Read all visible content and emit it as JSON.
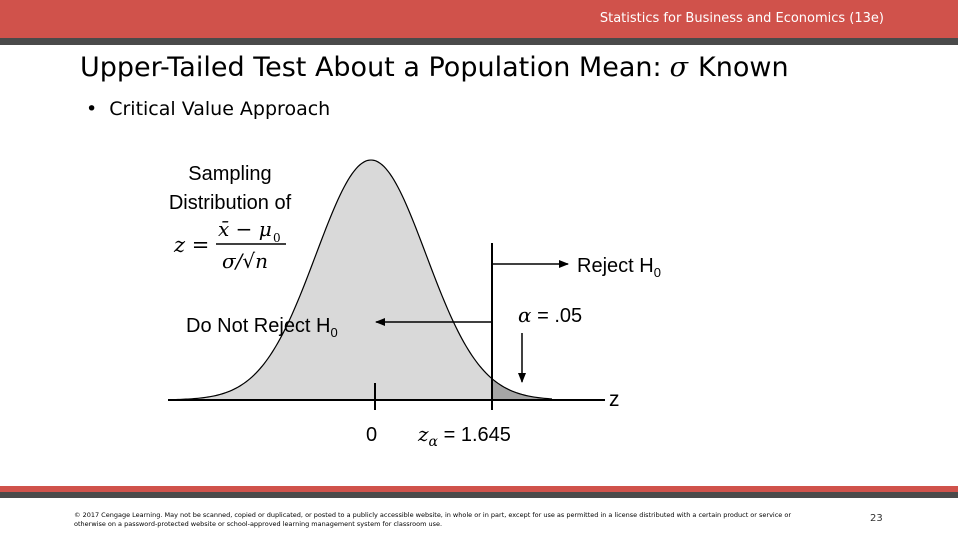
{
  "header": {
    "course": "Statistics for Business and Economics (13e)"
  },
  "slide": {
    "title_pre": "Upper-Tailed Test About a Population Mean:",
    "title_symbol": "σ",
    "title_post": "Known",
    "bullet": "Critical Value Approach"
  },
  "diagram": {
    "sampling_line1": "Sampling",
    "sampling_line2": "Distribution of",
    "formula": {
      "lhs": "z =",
      "numerator": "x̄ − μ",
      "numerator_sub": "0",
      "denominator": "σ/√n"
    },
    "reject_label": "Reject H",
    "reject_sub": "0",
    "alpha_symbol": "α",
    "alpha_value": "= .05",
    "dnr_label": "Do Not Reject H",
    "dnr_sub": "0",
    "axis_label": "z",
    "zero_label": "0",
    "zcrit_symbol": "z",
    "zcrit_sub": "α",
    "zcrit_value": "= 1.645",
    "colors": {
      "curve_fill": "#d9d9d9",
      "tail_fill": "#a6a6a6"
    }
  },
  "footer": {
    "copyright": "© 2017 Cengage Learning. May not be scanned, copied or duplicated, or posted to a publicly accessible website, in whole or in part, except for use as permitted in a license distributed with a certain product or service or otherwise on a password-protected website or school-approved learning management system for classroom use.",
    "page_number": "23"
  }
}
